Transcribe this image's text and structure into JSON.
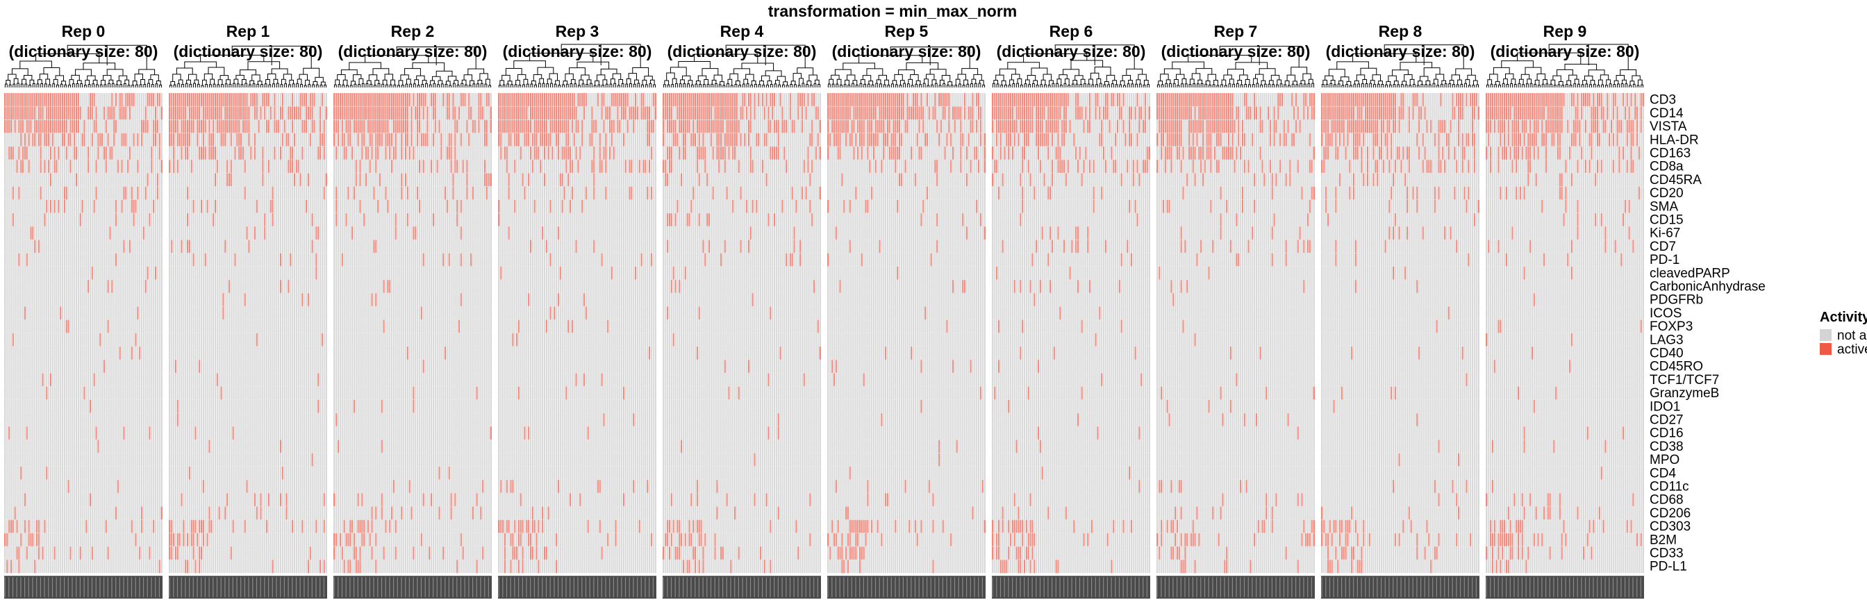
{
  "chart_data": {
    "type": "heatmap",
    "title": "transformation = min_max_norm",
    "n_columns_per_panel": 80,
    "panels": [
      {
        "rep": "Rep 0",
        "subtitle": "(dictionary size: 80)"
      },
      {
        "rep": "Rep 1",
        "subtitle": "(dictionary size: 80)"
      },
      {
        "rep": "Rep 2",
        "subtitle": "(dictionary size: 80)"
      },
      {
        "rep": "Rep 3",
        "subtitle": "(dictionary size: 80)"
      },
      {
        "rep": "Rep 4",
        "subtitle": "(dictionary size: 80)"
      },
      {
        "rep": "Rep 5",
        "subtitle": "(dictionary size: 80)"
      },
      {
        "rep": "Rep 6",
        "subtitle": "(dictionary size: 80)"
      },
      {
        "rep": "Rep 7",
        "subtitle": "(dictionary size: 80)"
      },
      {
        "rep": "Rep 8",
        "subtitle": "(dictionary size: 80)"
      },
      {
        "rep": "Rep 9",
        "subtitle": "(dictionary size: 80)"
      }
    ],
    "rows": [
      "CD3",
      "CD14",
      "VISTA",
      "HLA-DR",
      "CD163",
      "CD8a",
      "CD45RA",
      "CD20",
      "SMA",
      "CD15",
      "Ki-67",
      "CD7",
      "PD-1",
      "cleavedPARP",
      "CarbonicAnhydrase",
      "PDGFRb",
      "ICOS",
      "FOXP3",
      "LAG3",
      "CD40",
      "CD45RO",
      "TCF1/TCF7",
      "GranzymeB",
      "IDO1",
      "CD27",
      "CD16",
      "CD38",
      "MPO",
      "CD4",
      "CD11c",
      "CD68",
      "CD206",
      "CD303",
      "B2M",
      "CD33",
      "PD-L1"
    ],
    "row_activity_fraction": [
      0.75,
      0.7,
      0.62,
      0.4,
      0.32,
      0.22,
      0.1,
      0.12,
      0.08,
      0.06,
      0.05,
      0.05,
      0.05,
      0.02,
      0.03,
      0.02,
      0.02,
      0.02,
      0.02,
      0.02,
      0.02,
      0.02,
      0.02,
      0.01,
      0.02,
      0.02,
      0.02,
      0.01,
      0.01,
      0.05,
      0.06,
      0.05,
      0.22,
      0.2,
      0.16,
      0.12
    ],
    "legend": {
      "title": "Activity",
      "position": "right",
      "entries": [
        {
          "label": "not active",
          "color": "#d4d4d4"
        },
        {
          "label": "active",
          "color": "#f08070"
        }
      ]
    },
    "colors": {
      "inactive": "#d9d9d9",
      "active": "#f4877a",
      "grid": "#ffffff"
    }
  }
}
